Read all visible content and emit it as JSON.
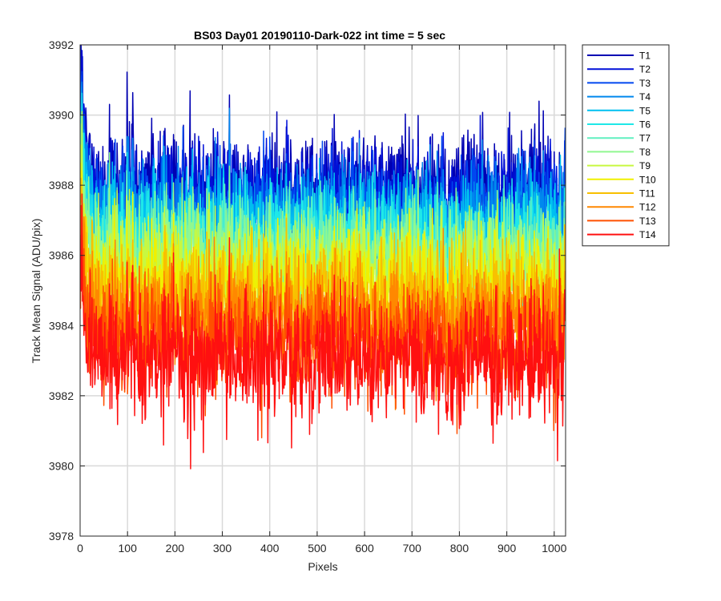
{
  "chart_data": {
    "type": "line",
    "title": "BS03 Day01 20190110-Dark-022 int time = 5 sec",
    "xlabel": "Pixels",
    "ylabel": "Track Mean Signal (ADU/pix)",
    "xlim": [
      0,
      1024
    ],
    "ylim": [
      3978,
      3992
    ],
    "xticks": [
      0,
      100,
      200,
      300,
      400,
      500,
      600,
      700,
      800,
      900,
      1000
    ],
    "yticks": [
      3978,
      3980,
      3982,
      3984,
      3986,
      3988,
      3990,
      3992
    ],
    "grid": true,
    "legend_position": "outside-top-right",
    "x_range": [
      0,
      1023
    ],
    "series": [
      {
        "name": "T1",
        "color": "#0000b3",
        "mean": 3988.0,
        "noise_sd": 0.75,
        "start_value": 3991.9
      },
      {
        "name": "T2",
        "color": "#0010d9",
        "mean": 3987.7,
        "noise_sd": 0.75,
        "start_value": 3991.5
      },
      {
        "name": "T3",
        "color": "#0047f0",
        "mean": 3987.3,
        "noise_sd": 0.75,
        "start_value": 3991.1
      },
      {
        "name": "T4",
        "color": "#0088ee",
        "mean": 3987.1,
        "noise_sd": 0.75,
        "start_value": 3990.6
      },
      {
        "name": "T5",
        "color": "#00c0f0",
        "mean": 3986.8,
        "noise_sd": 0.75,
        "start_value": 3990.2
      },
      {
        "name": "T6",
        "color": "#1fe8e8",
        "mean": 3986.5,
        "noise_sd": 0.75,
        "start_value": 3989.8
      },
      {
        "name": "T7",
        "color": "#60f0c0",
        "mean": 3986.2,
        "noise_sd": 0.75,
        "start_value": 3989.4
      },
      {
        "name": "T8",
        "color": "#90f890",
        "mean": 3986.0,
        "noise_sd": 0.75,
        "start_value": 3989.0
      },
      {
        "name": "T9",
        "color": "#c8f840",
        "mean": 3985.6,
        "noise_sd": 0.75,
        "start_value": 3988.6
      },
      {
        "name": "T10",
        "color": "#f0f000",
        "mean": 3985.2,
        "noise_sd": 0.75,
        "start_value": 3988.2
      },
      {
        "name": "T11",
        "color": "#f8c000",
        "mean": 3984.7,
        "noise_sd": 0.8,
        "start_value": 3987.8
      },
      {
        "name": "T12",
        "color": "#ff8800",
        "mean": 3984.2,
        "noise_sd": 0.8,
        "start_value": 3987.4
      },
      {
        "name": "T13",
        "color": "#ff5000",
        "mean": 3983.6,
        "noise_sd": 0.85,
        "start_value": 3986.9
      },
      {
        "name": "T14",
        "color": "#ff1010",
        "mean": 3983.0,
        "noise_sd": 0.9,
        "start_value": 3986.5
      }
    ]
  }
}
